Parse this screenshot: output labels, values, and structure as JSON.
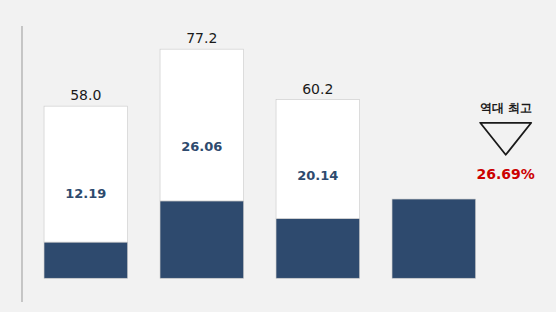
{
  "chart_data": {
    "type": "bar",
    "stacked": true,
    "categories": [
      null,
      null,
      null,
      null
    ],
    "series": [
      {
        "color": "#2e4a6e",
        "values": [
          12.19,
          26.06,
          20.14,
          26.69
        ],
        "data_labels": true,
        "value_labels": [
          "12.19",
          "26.06",
          "20.14",
          null
        ]
      },
      {
        "color": "#ffffff",
        "values": [
          45.81,
          51.14,
          40.06,
          null
        ]
      }
    ],
    "totals": [
      58.0,
      77.2,
      60.2,
      null
    ],
    "total_labels": [
      "58.0",
      "77.2",
      "60.2",
      null
    ],
    "annotations": [
      {
        "text": "역대 최고"
      },
      {
        "text": "26.69%",
        "value": 26.69,
        "color": "#cc0000"
      }
    ],
    "ylim": [
      -8,
      85
    ],
    "grid": false,
    "tick_labels": false
  }
}
